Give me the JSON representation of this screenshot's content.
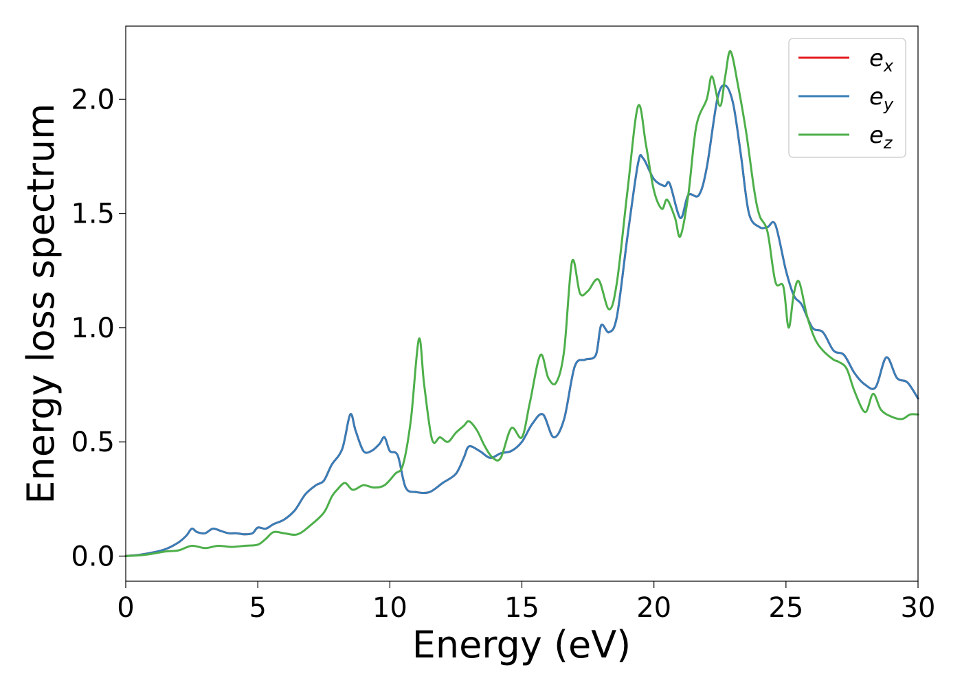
{
  "chart_data": {
    "type": "line",
    "xlabel": "Energy (eV)",
    "ylabel": "Energy loss spectrum",
    "xlim": [
      0,
      30
    ],
    "ylim": [
      -0.11,
      2.32
    ],
    "xticks": [
      "0",
      "5",
      "10",
      "15",
      "20",
      "25",
      "30"
    ],
    "yticks": [
      "0.0",
      "0.5",
      "1.0",
      "1.5",
      "2.0"
    ],
    "grid": false,
    "legend_position": "top-right",
    "series": [
      {
        "name": "e",
        "subscript": "x",
        "color": "#e41a1c",
        "x": [
          0,
          0.5,
          1.0,
          1.5,
          2.0,
          2.3,
          2.5,
          2.7,
          3.0,
          3.3,
          3.6,
          3.9,
          4.2,
          4.5,
          4.8,
          5.0,
          5.3,
          5.6,
          6.0,
          6.4,
          6.8,
          7.2,
          7.5,
          7.8,
          8.2,
          8.5,
          8.7,
          9.0,
          9.3,
          9.6,
          9.8,
          10.0,
          10.3,
          10.6,
          11.0,
          11.5,
          12.0,
          12.5,
          12.8,
          13.0,
          13.4,
          13.8,
          14.2,
          14.6,
          15.0,
          15.4,
          15.8,
          16.2,
          16.6,
          17.0,
          17.4,
          17.8,
          18.0,
          18.3,
          18.6,
          19.0,
          19.4,
          19.6,
          20.0,
          20.4,
          20.6,
          21.0,
          21.3,
          21.7,
          22.0,
          22.4,
          22.7,
          23.0,
          23.3,
          23.6,
          24.0,
          24.3,
          24.6,
          25.0,
          25.3,
          25.6,
          26.0,
          26.4,
          26.8,
          27.2,
          27.6,
          28.0,
          28.4,
          28.8,
          29.2,
          29.6,
          30.0
        ],
        "y": [
          0,
          0.005,
          0.015,
          0.03,
          0.06,
          0.09,
          0.12,
          0.105,
          0.1,
          0.12,
          0.11,
          0.1,
          0.1,
          0.095,
          0.1,
          0.125,
          0.12,
          0.14,
          0.16,
          0.2,
          0.27,
          0.31,
          0.33,
          0.4,
          0.47,
          0.62,
          0.55,
          0.46,
          0.46,
          0.49,
          0.52,
          0.46,
          0.44,
          0.3,
          0.28,
          0.28,
          0.32,
          0.36,
          0.43,
          0.48,
          0.46,
          0.43,
          0.45,
          0.46,
          0.5,
          0.58,
          0.62,
          0.52,
          0.6,
          0.83,
          0.86,
          0.88,
          1.01,
          0.98,
          1.05,
          1.4,
          1.72,
          1.74,
          1.65,
          1.62,
          1.63,
          1.48,
          1.58,
          1.58,
          1.7,
          2.0,
          2.06,
          1.98,
          1.75,
          1.5,
          1.44,
          1.44,
          1.45,
          1.25,
          1.14,
          1.1,
          1.0,
          0.98,
          0.9,
          0.88,
          0.8,
          0.75,
          0.74,
          0.87,
          0.78,
          0.76,
          0.69
        ]
      },
      {
        "name": "e",
        "subscript": "y",
        "color": "#377eb8",
        "x": [
          0,
          0.5,
          1.0,
          1.5,
          2.0,
          2.3,
          2.5,
          2.7,
          3.0,
          3.3,
          3.6,
          3.9,
          4.2,
          4.5,
          4.8,
          5.0,
          5.3,
          5.6,
          6.0,
          6.4,
          6.8,
          7.2,
          7.5,
          7.8,
          8.2,
          8.5,
          8.7,
          9.0,
          9.3,
          9.6,
          9.8,
          10.0,
          10.3,
          10.6,
          11.0,
          11.5,
          12.0,
          12.5,
          12.8,
          13.0,
          13.4,
          13.8,
          14.2,
          14.6,
          15.0,
          15.4,
          15.8,
          16.2,
          16.6,
          17.0,
          17.4,
          17.8,
          18.0,
          18.3,
          18.6,
          19.0,
          19.4,
          19.6,
          20.0,
          20.4,
          20.6,
          21.0,
          21.3,
          21.7,
          22.0,
          22.4,
          22.7,
          23.0,
          23.3,
          23.6,
          24.0,
          24.3,
          24.6,
          25.0,
          25.3,
          25.6,
          26.0,
          26.4,
          26.8,
          27.2,
          27.6,
          28.0,
          28.4,
          28.8,
          29.2,
          29.6,
          30.0
        ],
        "y": [
          0,
          0.005,
          0.015,
          0.03,
          0.06,
          0.09,
          0.12,
          0.105,
          0.1,
          0.12,
          0.11,
          0.1,
          0.1,
          0.095,
          0.1,
          0.125,
          0.12,
          0.14,
          0.16,
          0.2,
          0.27,
          0.31,
          0.33,
          0.4,
          0.47,
          0.62,
          0.55,
          0.46,
          0.46,
          0.49,
          0.52,
          0.46,
          0.44,
          0.3,
          0.28,
          0.28,
          0.32,
          0.36,
          0.43,
          0.48,
          0.46,
          0.43,
          0.45,
          0.46,
          0.5,
          0.58,
          0.62,
          0.52,
          0.6,
          0.83,
          0.86,
          0.88,
          1.01,
          0.98,
          1.05,
          1.4,
          1.72,
          1.74,
          1.65,
          1.62,
          1.63,
          1.48,
          1.58,
          1.58,
          1.7,
          2.0,
          2.06,
          1.98,
          1.75,
          1.5,
          1.44,
          1.44,
          1.45,
          1.25,
          1.14,
          1.1,
          1.0,
          0.98,
          0.9,
          0.88,
          0.8,
          0.75,
          0.74,
          0.87,
          0.78,
          0.76,
          0.69
        ]
      },
      {
        "name": "e",
        "subscript": "z",
        "color": "#4daf4a",
        "x": [
          0,
          0.5,
          1.0,
          1.5,
          2.0,
          2.5,
          3.0,
          3.5,
          4.0,
          4.5,
          5.0,
          5.3,
          5.6,
          6.0,
          6.5,
          7.0,
          7.5,
          7.8,
          8.0,
          8.3,
          8.6,
          9.0,
          9.4,
          9.8,
          10.2,
          10.5,
          10.8,
          11.1,
          11.3,
          11.6,
          11.9,
          12.2,
          12.5,
          12.8,
          13.0,
          13.3,
          13.6,
          13.9,
          14.2,
          14.6,
          15.0,
          15.3,
          15.7,
          16.0,
          16.3,
          16.6,
          16.9,
          17.2,
          17.5,
          17.9,
          18.3,
          18.6,
          19.0,
          19.4,
          19.7,
          20.0,
          20.3,
          20.5,
          20.8,
          21.0,
          21.3,
          21.6,
          22.0,
          22.2,
          22.5,
          22.7,
          22.9,
          23.2,
          23.5,
          23.8,
          24.0,
          24.3,
          24.6,
          24.9,
          25.1,
          25.3,
          25.5,
          25.8,
          26.1,
          26.4,
          26.8,
          27.0,
          27.3,
          27.6,
          28.0,
          28.3,
          28.6,
          29.0,
          29.4,
          29.7,
          30.0
        ],
        "y": [
          0,
          0.003,
          0.01,
          0.02,
          0.025,
          0.045,
          0.035,
          0.045,
          0.04,
          0.045,
          0.05,
          0.075,
          0.105,
          0.1,
          0.095,
          0.135,
          0.19,
          0.26,
          0.29,
          0.32,
          0.29,
          0.31,
          0.3,
          0.31,
          0.36,
          0.4,
          0.6,
          0.95,
          0.75,
          0.51,
          0.52,
          0.5,
          0.54,
          0.57,
          0.59,
          0.55,
          0.48,
          0.43,
          0.43,
          0.56,
          0.52,
          0.67,
          0.88,
          0.78,
          0.76,
          0.9,
          1.29,
          1.15,
          1.16,
          1.21,
          1.08,
          1.2,
          1.6,
          1.97,
          1.8,
          1.6,
          1.52,
          1.56,
          1.48,
          1.4,
          1.58,
          1.88,
          2.0,
          2.1,
          1.97,
          2.1,
          2.21,
          2.05,
          1.85,
          1.6,
          1.49,
          1.42,
          1.2,
          1.18,
          1.0,
          1.15,
          1.2,
          1.05,
          0.95,
          0.9,
          0.86,
          0.85,
          0.82,
          0.72,
          0.63,
          0.71,
          0.64,
          0.61,
          0.6,
          0.62,
          0.62
        ]
      }
    ]
  }
}
